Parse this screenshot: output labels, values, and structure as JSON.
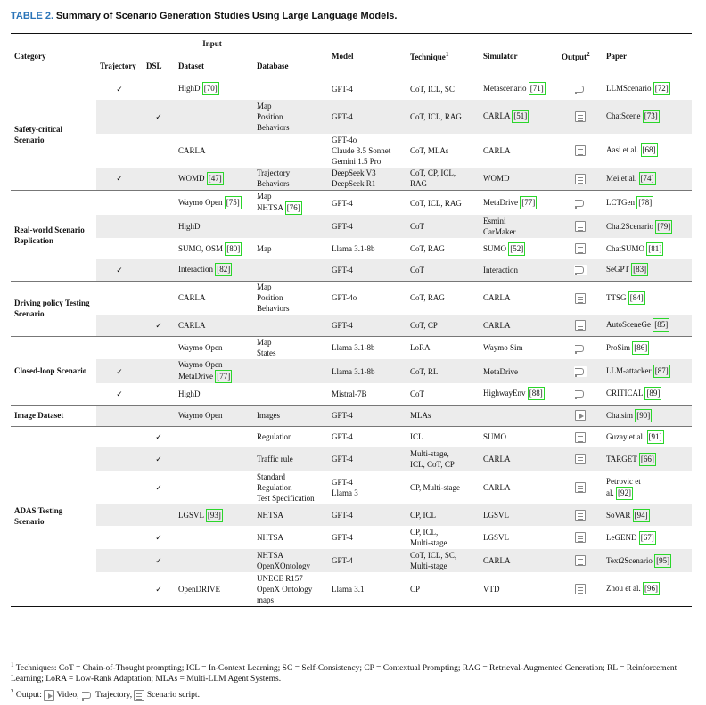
{
  "caption": {
    "label": "TABLE 2.",
    "text": "Summary of Scenario Generation Studies Using Large Language Models."
  },
  "headers": {
    "category": "Category",
    "input": "Input",
    "trajectory": "Trajectory",
    "dsl": "DSL",
    "dataset": "Dataset",
    "database": "Database",
    "model": "Model",
    "technique": "Technique",
    "technique_sup": "1",
    "simulator": "Simulator",
    "output": "Output",
    "output_sup": "2",
    "paper": "Paper"
  },
  "check": "✓",
  "groups": [
    {
      "name": "Safety-critical Scenario",
      "rows": [
        {
          "traj": true,
          "dsl": false,
          "dataset": "HighD",
          "dref": "70",
          "database": "",
          "model": "GPT-4",
          "technique": "CoT, ICL, SC",
          "simulator": "Metascenario",
          "sref": "71",
          "output": "traj",
          "paper": "LLMScenario",
          "pref": "72",
          "gray": false
        },
        {
          "traj": false,
          "dsl": true,
          "dataset": "",
          "dref": "",
          "database": "Map\nPosition\nBehaviors",
          "model": "GPT-4",
          "technique": "CoT, ICL, RAG",
          "simulator": "CARLA",
          "sref": "51",
          "output": "script",
          "paper": "ChatScene",
          "pref": "73",
          "gray": true
        },
        {
          "traj": false,
          "dsl": false,
          "dataset": "CARLA",
          "dref": "",
          "database": "",
          "model": "GPT-4o\nClaude 3.5 Sonnet\nGemini 1.5 Pro",
          "technique": "CoT, MLAs",
          "simulator": "CARLA",
          "sref": "",
          "output": "script",
          "paper": "Aasi et al.",
          "pref": "68",
          "gray": false
        },
        {
          "traj": true,
          "dsl": false,
          "dataset": "WOMD",
          "dref": "47",
          "database": "Trajectory\nBehaviors",
          "model": "DeepSeek V3\nDeepSeek R1",
          "technique": "CoT, CP, ICL,\nRAG",
          "simulator": "WOMD",
          "sref": "",
          "output": "script",
          "paper": "Mei et al.",
          "pref": "74",
          "gray": true
        }
      ]
    },
    {
      "name": "Real-world Scenario Replication",
      "rows": [
        {
          "traj": false,
          "dsl": false,
          "dataset": "Waymo Open",
          "dref": "75",
          "database": "Map\nNHTSA",
          "dbref": "76",
          "model": "GPT-4",
          "technique": "CoT, ICL, RAG",
          "simulator": "MetaDrive",
          "sref": "77",
          "output": "traj",
          "paper": "LCTGen",
          "pref": "78",
          "gray": false
        },
        {
          "traj": false,
          "dsl": false,
          "dataset": "HighD",
          "dref": "",
          "database": "",
          "model": "GPT-4",
          "technique": "CoT",
          "simulator": "Esmini\nCarMaker",
          "sref": "",
          "output": "script",
          "paper": "Chat2Scenario",
          "pref": "79",
          "gray": true
        },
        {
          "traj": false,
          "dsl": false,
          "dataset": "SUMO, OSM",
          "dref": "80",
          "database": "Map",
          "model": "Llama 3.1-8b",
          "technique": "CoT, RAG",
          "simulator": "SUMO",
          "sref": "52",
          "output": "script",
          "paper": "ChatSUMO",
          "pref": "81",
          "gray": false
        },
        {
          "traj": true,
          "dsl": false,
          "dataset": "Interaction",
          "dref": "82",
          "database": "",
          "model": "GPT-4",
          "technique": "CoT",
          "simulator": "Interaction",
          "sref": "",
          "output": "traj",
          "paper": "SeGPT",
          "pref": "83",
          "gray": true
        }
      ]
    },
    {
      "name": "Driving policy Testing Scenario",
      "rows": [
        {
          "traj": false,
          "dsl": false,
          "dataset": "CARLA",
          "dref": "",
          "database": "Map\nPosition\nBehaviors",
          "model": "GPT-4o",
          "technique": "CoT, RAG",
          "simulator": "CARLA",
          "sref": "",
          "output": "script",
          "paper": "TTSG",
          "pref": "84",
          "gray": false
        },
        {
          "traj": false,
          "dsl": true,
          "dataset": "CARLA",
          "dref": "",
          "database": "",
          "model": "GPT-4",
          "technique": "CoT, CP",
          "simulator": "CARLA",
          "sref": "",
          "output": "script",
          "paper": "AutoSceneGe",
          "pref": "85",
          "gray": true
        }
      ]
    },
    {
      "name": "Closed-loop Scenario",
      "rows": [
        {
          "traj": false,
          "dsl": false,
          "dataset": "Waymo Open",
          "dref": "",
          "database": "Map\nStates",
          "model": "Llama 3.1-8b",
          "technique": "LoRA",
          "simulator": "Waymo Sim",
          "sref": "",
          "output": "traj",
          "paper": "ProSim",
          "pref": "86",
          "gray": false
        },
        {
          "traj": true,
          "dsl": false,
          "dataset": "Waymo Open\nMetaDrive",
          "dref": "77",
          "database": "",
          "model": "Llama 3.1-8b",
          "technique": "CoT, RL",
          "simulator": "MetaDrive",
          "sref": "",
          "output": "traj",
          "paper": "LLM-attacker",
          "pref": "87",
          "gray": true
        },
        {
          "traj": true,
          "dsl": false,
          "dataset": "HighD",
          "dref": "",
          "database": "",
          "model": "Mistral-7B",
          "technique": "CoT",
          "simulator": "HighwayEnv",
          "sref": "88",
          "output": "traj",
          "paper": "CRITICAL",
          "pref": "89",
          "gray": false
        }
      ]
    },
    {
      "name": "Image Dataset",
      "rows": [
        {
          "traj": false,
          "dsl": false,
          "dataset": "Waymo Open",
          "dref": "",
          "database": "Images",
          "model": "GPT-4",
          "technique": "MLAs",
          "simulator": "",
          "sref": "",
          "output": "video",
          "paper": "Chatsim",
          "pref": "90",
          "gray": true
        }
      ]
    },
    {
      "name": "ADAS Testing Scenario",
      "rows": [
        {
          "traj": false,
          "dsl": true,
          "dataset": "",
          "dref": "",
          "database": "Regulation",
          "model": "GPT-4",
          "technique": "ICL",
          "simulator": "SUMO",
          "sref": "",
          "output": "script",
          "paper": "Guzay et al.",
          "pref": "91",
          "gray": false
        },
        {
          "traj": false,
          "dsl": true,
          "dataset": "",
          "dref": "",
          "database": "Traffic rule",
          "model": "GPT-4",
          "technique": "Multi-stage,\nICL, CoT, CP",
          "simulator": "CARLA",
          "sref": "",
          "output": "script",
          "paper": "TARGET",
          "pref": "66",
          "gray": true
        },
        {
          "traj": false,
          "dsl": true,
          "dataset": "",
          "dref": "",
          "database": "Standard\nRegulation\nTest Specification",
          "model": "GPT-4\nLlama 3",
          "technique": "CP, Multi-stage",
          "simulator": "CARLA",
          "sref": "",
          "output": "script",
          "paper": "Petrovic et\nal.",
          "pref": "92",
          "gray": false
        },
        {
          "traj": false,
          "dsl": false,
          "dataset": "LGSVL",
          "dref": "93",
          "database": "NHTSA",
          "model": "GPT-4",
          "technique": "CP, ICL",
          "simulator": "LGSVL",
          "sref": "",
          "output": "script",
          "paper": "SoVAR",
          "pref": "94",
          "gray": true
        },
        {
          "traj": false,
          "dsl": true,
          "dataset": "",
          "dref": "",
          "database": "NHTSA",
          "model": "GPT-4",
          "technique": "CP, ICL,\nMulti-stage",
          "simulator": "LGSVL",
          "sref": "",
          "output": "script",
          "paper": "LeGEND",
          "pref": "67",
          "gray": false
        },
        {
          "traj": false,
          "dsl": true,
          "dataset": "",
          "dref": "",
          "database": "NHTSA\nOpenXOntology",
          "model": "GPT-4",
          "technique": "CoT, ICL, SC,\nMulti-stage",
          "simulator": "CARLA",
          "sref": "",
          "output": "script",
          "paper": "Text2Scenario",
          "pref": "95",
          "gray": true
        },
        {
          "traj": false,
          "dsl": true,
          "dataset": "OpenDRIVE",
          "dref": "",
          "database": "UNECE R157\nOpenX Ontology\nmaps",
          "model": "Llama 3.1",
          "technique": "CP",
          "simulator": "VTD",
          "sref": "",
          "output": "script",
          "paper": "Zhou et al.",
          "pref": "96",
          "gray": false
        }
      ]
    }
  ],
  "notes": {
    "n1_sup": "1",
    "n1": "Techniques: CoT = Chain-of-Thought prompting; ICL = In-Context Learning; SC = Self-Consistency; CP = Contextual Prompting; RAG = Retrieval-Augmented Generation; RL = Reinforcement Learning; LoRA = Low-Rank Adaptation; MLAs = Multi-LLM Agent Systems.",
    "n2_sup": "2",
    "n2_a": "Output:",
    "n2_video": "Video,",
    "n2_traj": "Trajectory,",
    "n2_script": "Scenario script."
  }
}
